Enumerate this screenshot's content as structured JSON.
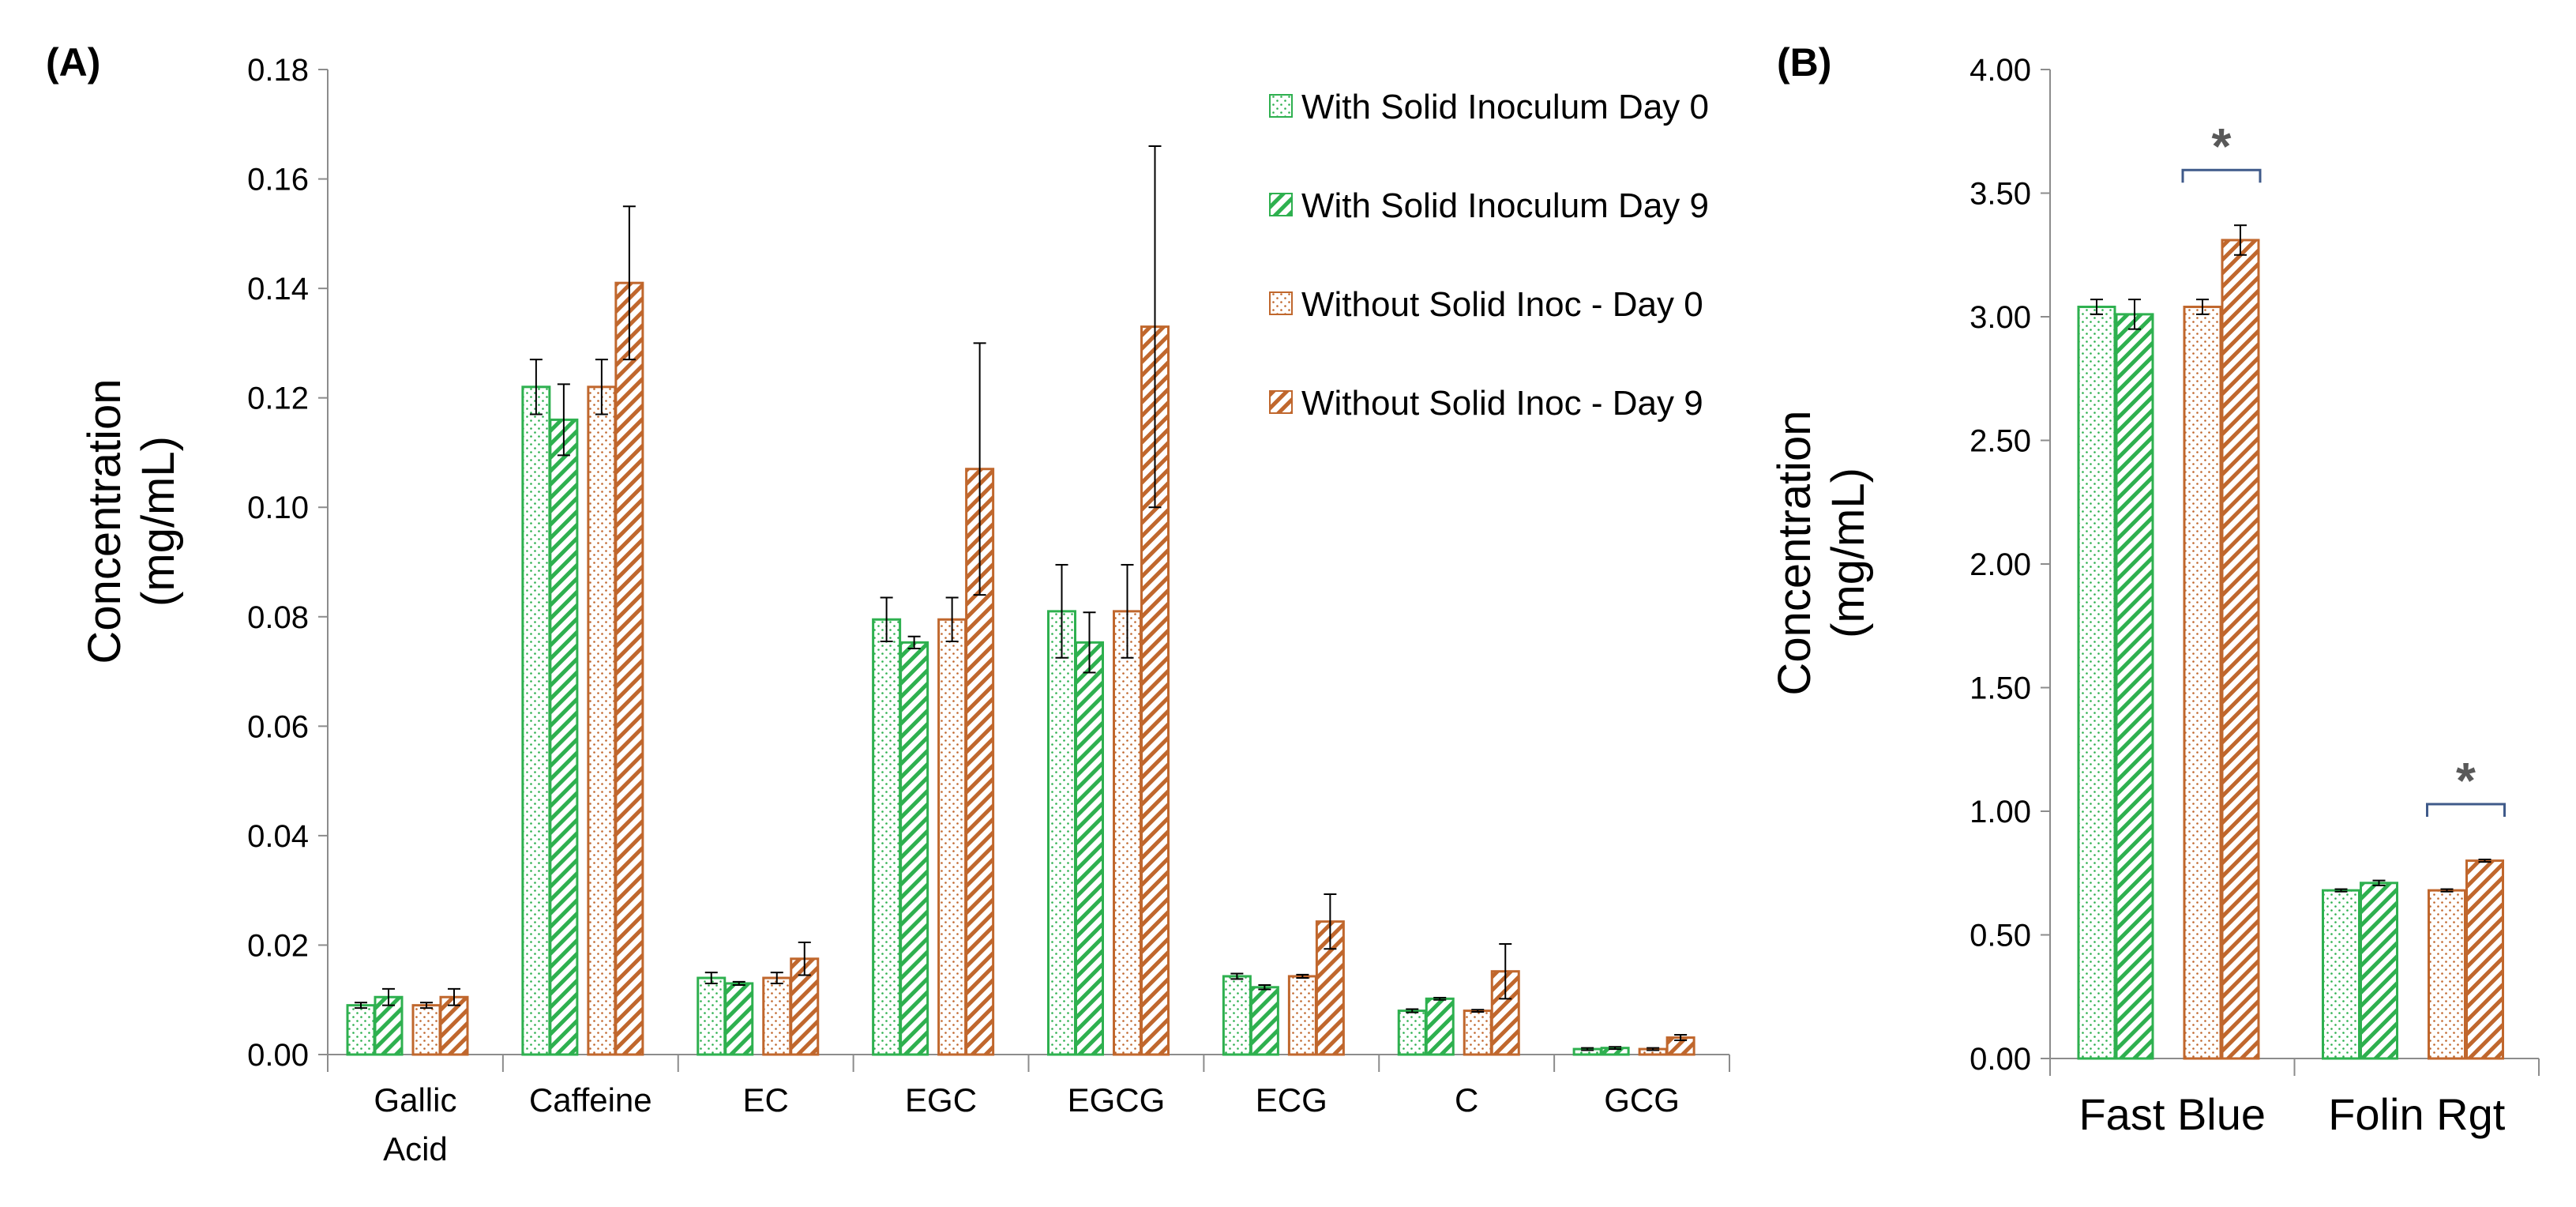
{
  "colors": {
    "green": "#2eb04f",
    "orange": "#c0672d",
    "axis": "#8c8c8c",
    "errorbar": "#000000",
    "bracket": "#3f5a8a",
    "star": "#595959"
  },
  "legend": {
    "items": [
      {
        "label": "With Solid Inoculum Day 0",
        "color": "green",
        "pattern": "dots"
      },
      {
        "label": "With Solid Inoculum Day 9",
        "color": "green",
        "pattern": "hatch"
      },
      {
        "label": "Without Solid Inoc - Day 0",
        "color": "orange",
        "pattern": "dots"
      },
      {
        "label": "Without Solid Inoc - Day 9",
        "color": "orange",
        "pattern": "hatch"
      }
    ]
  },
  "chart_data": [
    {
      "panel_label": "(A)",
      "type": "bar",
      "ylabel_line1": "Concentration",
      "ylabel_line2": "(mg/mL)",
      "ylim": [
        0,
        0.18
      ],
      "yticks": [
        "0.00",
        "0.02",
        "0.04",
        "0.06",
        "0.08",
        "0.10",
        "0.12",
        "0.14",
        "0.16",
        "0.18"
      ],
      "categories": [
        [
          "Gallic",
          "Acid"
        ],
        [
          "Caffeine"
        ],
        [
          "EC"
        ],
        [
          "EGC"
        ],
        [
          "EGCG"
        ],
        [
          "ECG"
        ],
        [
          "C"
        ],
        [
          "GCG"
        ]
      ],
      "series": [
        {
          "name": "With Solid Inoculum Day 0",
          "values": [
            0.009,
            0.122,
            0.014,
            0.0795,
            0.081,
            0.0143,
            0.008,
            0.001
          ],
          "errors": [
            0.0005,
            0.005,
            0.001,
            0.004,
            0.0085,
            0.0005,
            0.0003,
            0.0002
          ]
        },
        {
          "name": "With Solid Inoculum Day 9",
          "values": [
            0.0105,
            0.116,
            0.013,
            0.0753,
            0.0753,
            0.0123,
            0.0102,
            0.0012
          ],
          "errors": [
            0.0015,
            0.0065,
            0.0003,
            0.0011,
            0.0055,
            0.0004,
            0.0002,
            0.0002
          ]
        },
        {
          "name": "Without Solid Inoc - Day 0",
          "values": [
            0.009,
            0.122,
            0.014,
            0.0795,
            0.081,
            0.0143,
            0.008,
            0.001
          ],
          "errors": [
            0.0005,
            0.005,
            0.001,
            0.004,
            0.0085,
            0.0003,
            0.0002,
            0.0002
          ]
        },
        {
          "name": "Without Solid Inoc - Day 9",
          "values": [
            0.0105,
            0.141,
            0.0175,
            0.107,
            0.133,
            0.0243,
            0.0152,
            0.0031
          ],
          "errors": [
            0.0015,
            0.014,
            0.003,
            0.023,
            0.033,
            0.005,
            0.005,
            0.0005
          ]
        }
      ]
    },
    {
      "panel_label": "(B)",
      "type": "bar",
      "ylabel_line1": "Concentration",
      "ylabel_line2": "(mg/mL)",
      "ylim": [
        0,
        4
      ],
      "yticks": [
        "0.00",
        "0.50",
        "1.00",
        "1.50",
        "2.00",
        "2.50",
        "3.00",
        "3.50",
        "4.00"
      ],
      "categories": [
        [
          "Fast Blue"
        ],
        [
          "Folin Rgt"
        ]
      ],
      "series": [
        {
          "name": "With Solid Inoculum Day 0",
          "values": [
            3.04,
            0.68
          ],
          "errors": [
            0.03,
            0.005
          ]
        },
        {
          "name": "With Solid Inoculum Day 9",
          "values": [
            3.01,
            0.71
          ],
          "errors": [
            0.06,
            0.01
          ]
        },
        {
          "name": "Without Solid Inoc - Day 0",
          "values": [
            3.04,
            0.68
          ],
          "errors": [
            0.03,
            0.005
          ]
        },
        {
          "name": "Without Solid Inoc - Day 9",
          "values": [
            3.31,
            0.8
          ],
          "errors": [
            0.06,
            0.005
          ]
        }
      ],
      "significance": [
        "*",
        "*"
      ]
    }
  ]
}
